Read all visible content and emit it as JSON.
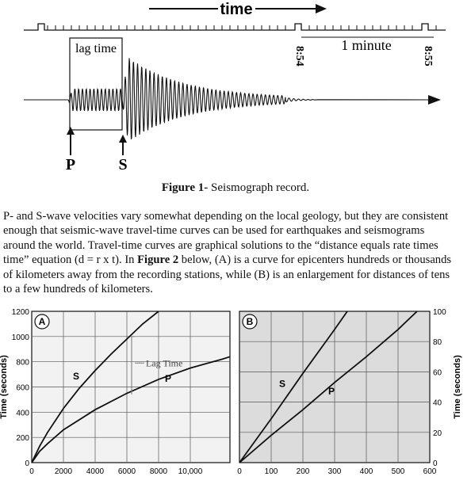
{
  "figure1": {
    "time_label": "time",
    "lag_time_label": "lag time",
    "one_minute_label": "1 minute",
    "time_854": "8:54",
    "time_855": "8:55",
    "p_label": "P",
    "s_label": "S",
    "caption_bold": "Figure 1-",
    "caption_text": " Seismograph record."
  },
  "paragraph": {
    "lines": [
      "P- and S-wave velocities vary somewhat depending on the local geology, but they are consistent",
      "enough that seismic-wave travel-time curves can be used for earthquakes and seismograms",
      "around the world. Travel-time curves are graphical solutions to the “distance equals rate times",
      "time” equation (d = r x t). In ",
      " below, (A) is a curve for epicenters hundreds or thousands",
      "of kilometers away from the recording stations, while (B) is an enlargement for distances of tens",
      "to a few hundreds of kilometers."
    ],
    "figure2_ref": "Figure 2"
  },
  "chart_data": [
    {
      "type": "line",
      "panel_label": "A",
      "ylabel": "Time (seconds)",
      "xlabel": "",
      "xlim": [
        0,
        12500
      ],
      "ylim": [
        0,
        1200
      ],
      "x_ticks": [
        "0",
        "2000",
        "4000",
        "6000",
        "8000",
        "10,000"
      ],
      "y_ticks": [
        "0",
        "200",
        "400",
        "600",
        "800",
        "1000",
        "1200"
      ],
      "grid": true,
      "annotation": "Lag Time",
      "series": [
        {
          "name": "S",
          "x": [
            0,
            500,
            1000,
            2000,
            3000,
            4000,
            5000,
            6000,
            7000,
            8000
          ],
          "y": [
            0,
            130,
            240,
            430,
            590,
            730,
            860,
            980,
            1100,
            1200
          ]
        },
        {
          "name": "P",
          "x": [
            0,
            500,
            1000,
            2000,
            4000,
            6000,
            8000,
            10000,
            12000,
            12500
          ],
          "y": [
            0,
            90,
            150,
            260,
            420,
            550,
            660,
            750,
            820,
            840
          ]
        }
      ]
    },
    {
      "type": "line",
      "panel_label": "B",
      "ylabel": "Time (seconds)",
      "xlabel": "",
      "xlim": [
        0,
        600
      ],
      "ylim": [
        0,
        100
      ],
      "x_ticks": [
        "0",
        "100",
        "200",
        "300",
        "400",
        "500",
        "600"
      ],
      "y_ticks": [
        "0",
        "20",
        "40",
        "60",
        "80",
        "100"
      ],
      "grid": true,
      "series": [
        {
          "name": "S",
          "x": [
            0,
            100,
            200,
            300,
            340
          ],
          "y": [
            0,
            29,
            59,
            88,
            100
          ]
        },
        {
          "name": "P",
          "x": [
            0,
            100,
            200,
            300,
            400,
            500,
            560
          ],
          "y": [
            0,
            18,
            35,
            53,
            70,
            88,
            100
          ]
        }
      ]
    }
  ]
}
